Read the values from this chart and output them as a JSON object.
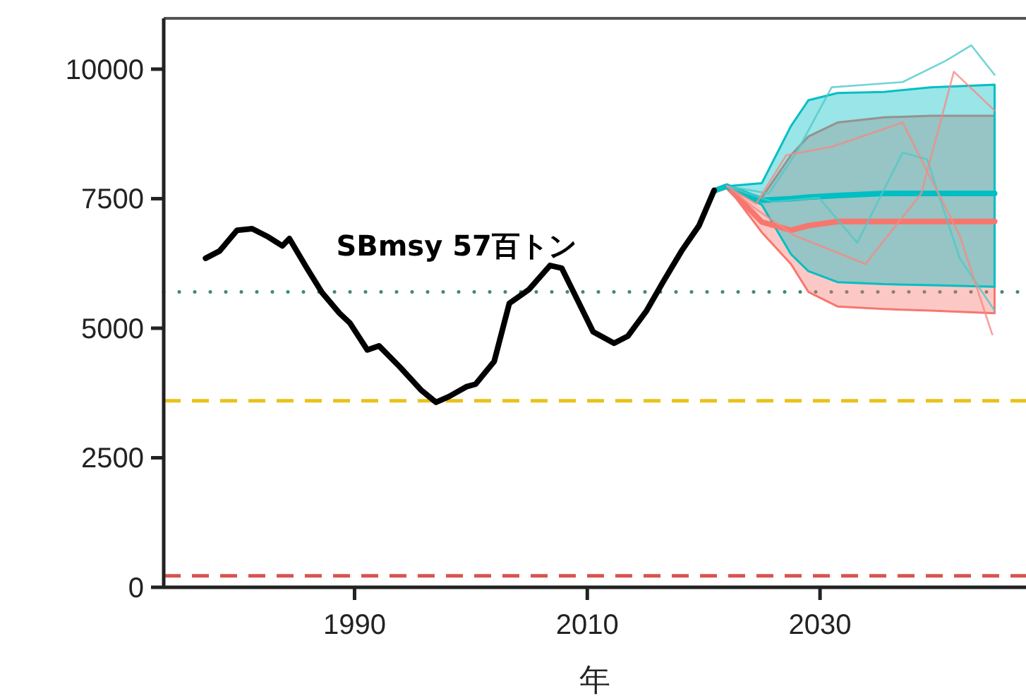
{
  "chart_data": {
    "type": "line",
    "xlabel": "年",
    "xlim": [
      1973.6,
      2047.7
    ],
    "xticks": [
      1990,
      2010,
      2030
    ],
    "ylim": [
      0,
      10980
    ],
    "yticks": [
      0,
      2500,
      5000,
      7500,
      10000
    ],
    "grid": false,
    "line_style": "solid",
    "ref_lines": [
      {
        "axis": "y",
        "value": 5700,
        "label": "SBmsy 57百トン",
        "color": "#3d8a6a",
        "line_style": "dotted"
      },
      {
        "axis": "y",
        "value": 3600,
        "label": null,
        "color": "#e8c21a",
        "line_style": "dashed"
      },
      {
        "axis": "y",
        "value": 220,
        "label": null,
        "color": "#d9534f",
        "line_style": "dashed"
      }
    ],
    "series": [
      {
        "color": "#f8766d",
        "x": [
          2021,
          2022,
          2025,
          2027.5,
          2029,
          2031.5,
          2035.5,
          2039.5,
          2045
        ],
        "values": [
          7660,
          7740,
          7050,
          6890,
          6980,
          7060,
          7060,
          7060,
          7060
        ],
        "lower": [
          7660,
          7740,
          6850,
          6240,
          5700,
          5420,
          5370,
          5340,
          5290
        ],
        "upper": [
          7660,
          7740,
          7520,
          8340,
          8700,
          8970,
          9070,
          9100,
          9100
        ]
      },
      {
        "color": "#00bfc4",
        "x": [
          2021,
          2022,
          2025,
          2027.5,
          2029,
          2031.5,
          2035.5,
          2039.5,
          2045
        ],
        "values": [
          7660,
          7740,
          7470,
          7500,
          7530,
          7560,
          7600,
          7600,
          7600
        ],
        "lower": [
          7660,
          7740,
          7380,
          6430,
          6100,
          5890,
          5850,
          5830,
          5800
        ],
        "upper": [
          7660,
          7740,
          7800,
          8900,
          9400,
          9540,
          9560,
          9650,
          9700
        ]
      },
      {
        "color": "#4fc9c9",
        "x": [
          2022,
          2025.6,
          2028,
          2031,
          2034,
          2037.1,
          2040.8,
          2043,
          2045
        ],
        "values": [
          7740,
          7600,
          8400,
          9650,
          9700,
          9750,
          10160,
          10460,
          9890
        ]
      },
      {
        "color": "#4fc9c9",
        "x": [
          2022,
          2025.9,
          2029.9,
          2033.2,
          2037.1,
          2039.2,
          2042,
          2045
        ],
        "values": [
          7740,
          7440,
          7520,
          6650,
          8390,
          8260,
          6350,
          5340
        ]
      },
      {
        "color": "#f48b84",
        "x": [
          2022,
          2024.5,
          2027.1,
          2031,
          2037.1,
          2042,
          2044.8
        ],
        "values": [
          7740,
          7400,
          8340,
          8500,
          8970,
          6790,
          4880
        ]
      },
      {
        "color": "#f48b84",
        "x": [
          2022,
          2024.5,
          2027.8,
          2033.9,
          2038.7,
          2041.5,
          2045
        ],
        "values": [
          7740,
          7300,
          6790,
          6240,
          7600,
          9950,
          9200
        ]
      },
      {
        "color": "#000000",
        "x": [
          1977.2,
          1978.4,
          1979.9,
          1981.2,
          1982.6,
          1983.8,
          1984.4,
          1985.9,
          1987.2,
          1988.7,
          1989.6,
          1991.1,
          1992.1,
          1993.9,
          1995.7,
          1997.0,
          1998.1,
          1999.6,
          2000.4,
          2002.0,
          2003.3,
          2005,
          2006.8,
          2007.8,
          2009.3,
          2010.5,
          2012.3,
          2013.5,
          2015.1,
          2016.5,
          2018.1,
          2019.6,
          2020.9
        ],
        "values": [
          6350,
          6490,
          6890,
          6920,
          6760,
          6590,
          6730,
          6160,
          5690,
          5290,
          5100,
          4580,
          4660,
          4250,
          3810,
          3570,
          3680,
          3870,
          3920,
          4360,
          5480,
          5750,
          6210,
          6160,
          5480,
          4930,
          4710,
          4850,
          5340,
          5890,
          6490,
          6980,
          7660
        ]
      }
    ]
  }
}
